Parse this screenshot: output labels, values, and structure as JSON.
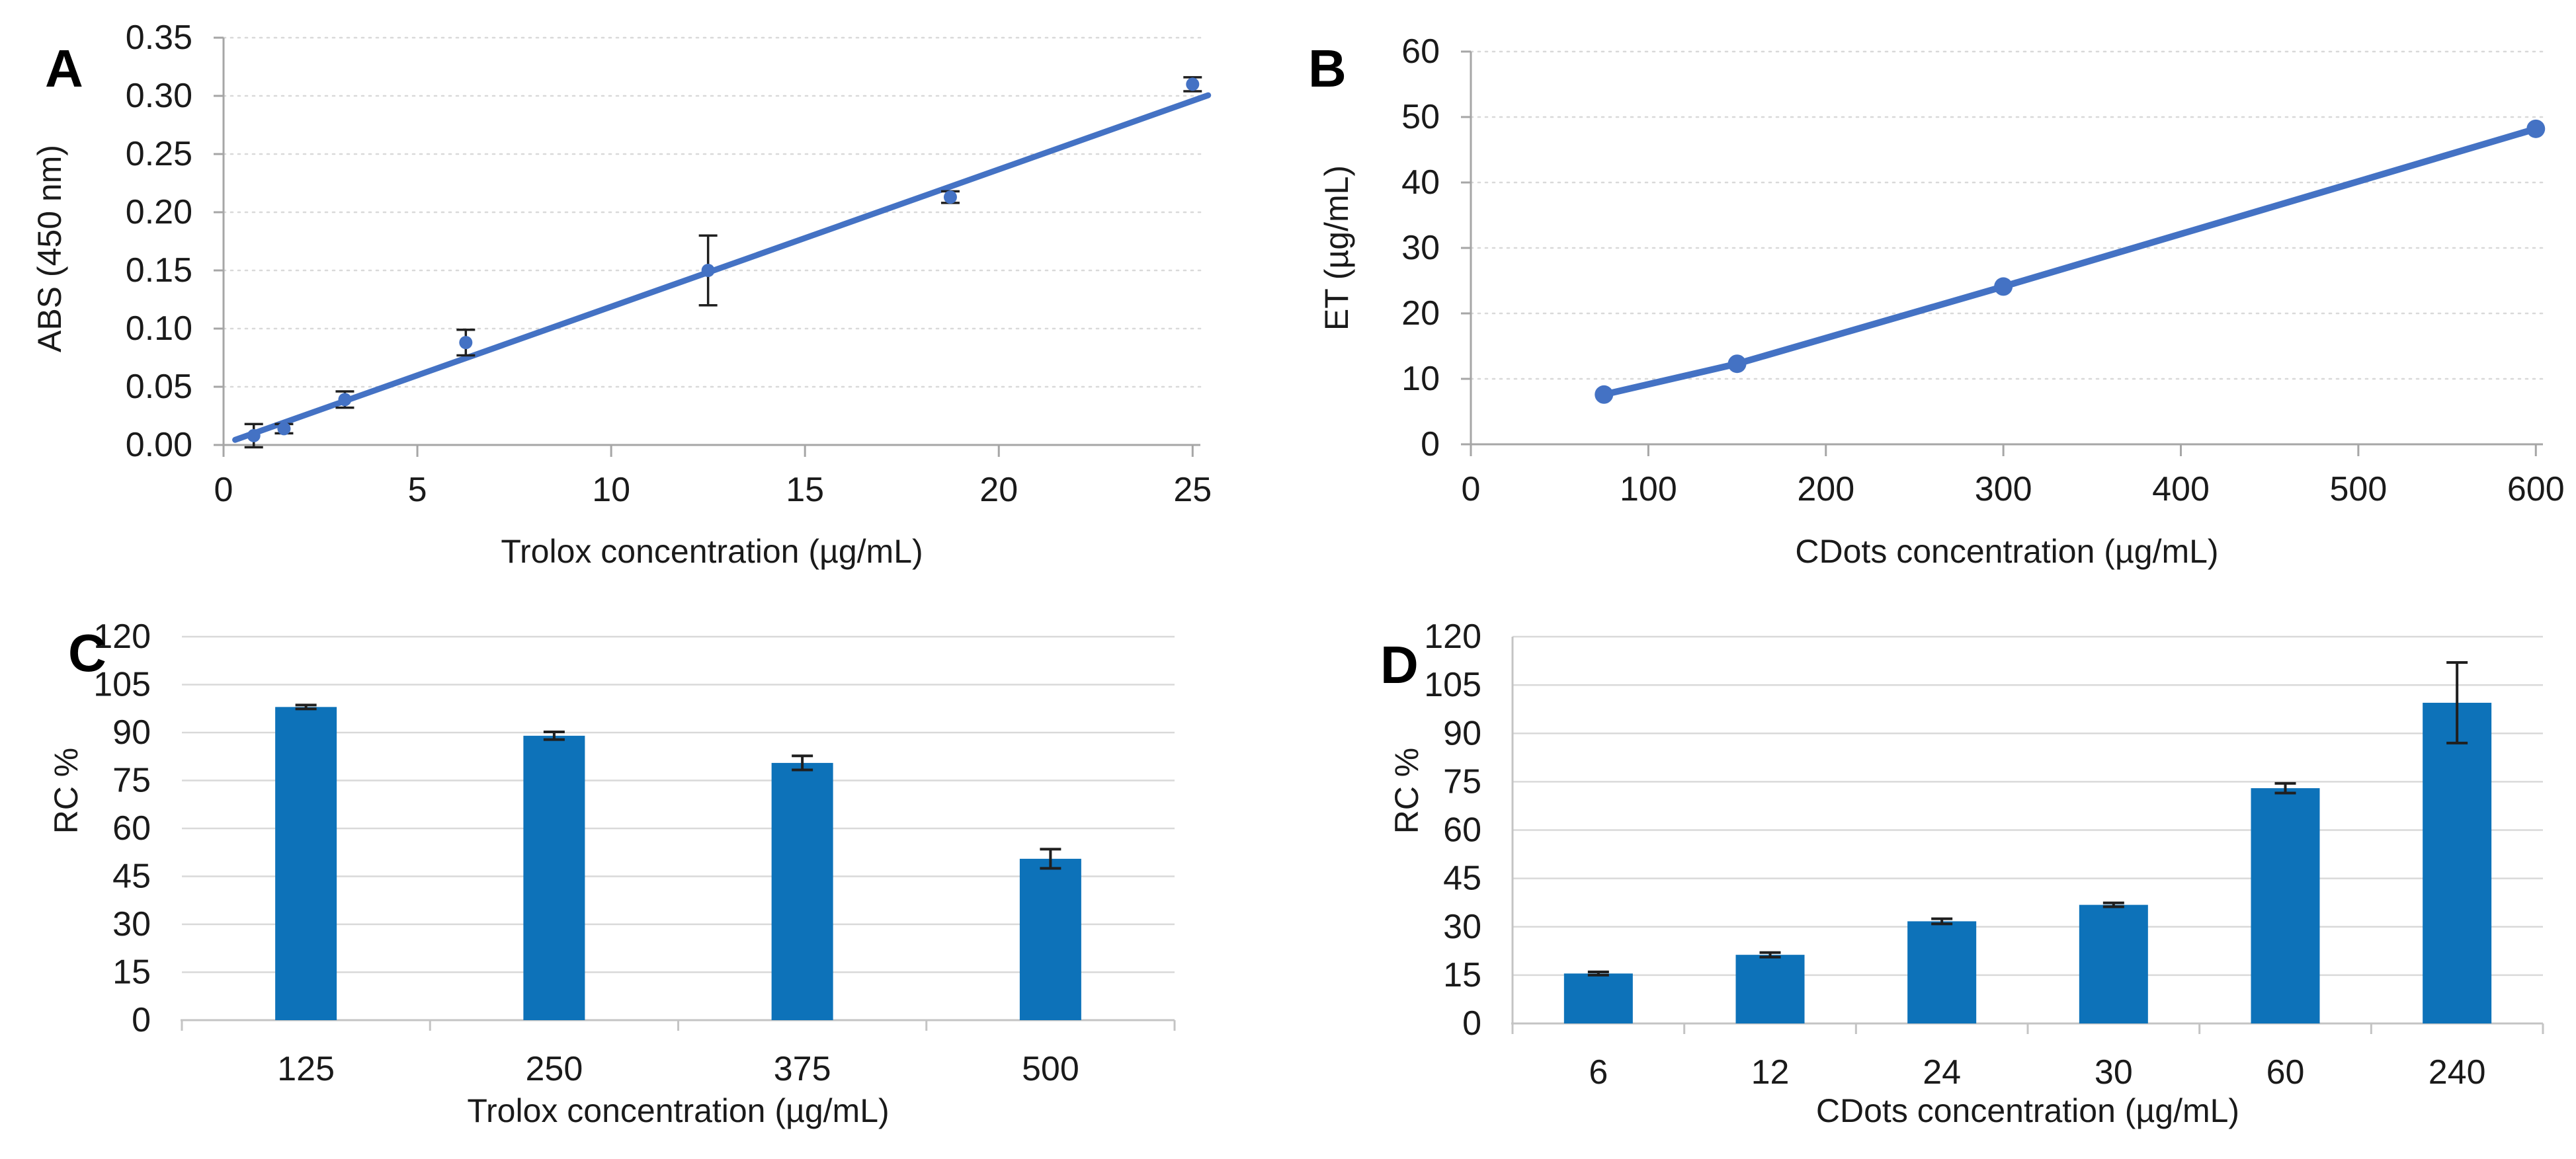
{
  "figure": {
    "panels": [
      "A",
      "B",
      "C",
      "D"
    ],
    "colors": {
      "series_line": "#4472c4",
      "bar_fill": "#0d72b9",
      "error_bar": "#1f1f1f",
      "gridline": "#d9d9d9",
      "axis_line": "#a6a6a6",
      "text": "#1a1a1a",
      "background": "#ffffff"
    }
  },
  "chart_data": [
    {
      "panel_label": "A",
      "type": "scatter",
      "xlabel": "Trolox concentration (µg/mL)",
      "ylabel": "ABS (450 nm)",
      "xlim": [
        0,
        25.2
      ],
      "xticks": [
        0,
        5,
        10,
        15,
        20,
        25
      ],
      "ylim": [
        0,
        0.35
      ],
      "ytick_step": 0.05,
      "ytick_decimals": 2,
      "grid": "dotted",
      "x": [
        0.78,
        1.56,
        3.13,
        6.25,
        12.5,
        18.75,
        25
      ],
      "y": [
        0.008,
        0.014,
        0.039,
        0.088,
        0.15,
        0.213,
        0.31
      ],
      "yerr": [
        0.01,
        0.004,
        0.007,
        0.011,
        0.03,
        0.005,
        0.006
      ],
      "trendline": {
        "x": [
          0.3,
          25.4
        ],
        "y": [
          0.0044,
          0.3005
        ]
      }
    },
    {
      "panel_label": "B",
      "type": "line",
      "xlabel": "CDots concentration (µg/mL)",
      "ylabel": "ET (µg/mL)",
      "xlim": [
        0,
        604
      ],
      "xticks": [
        0,
        100,
        200,
        300,
        400,
        500,
        600
      ],
      "ylim": [
        0,
        60
      ],
      "ytick_step": 10,
      "ytick_decimals": 0,
      "grid": "dotted",
      "x": [
        75,
        150,
        300,
        600
      ],
      "y": [
        7.6,
        12.3,
        24.1,
        48.2
      ]
    },
    {
      "panel_label": "C",
      "type": "bar",
      "xlabel": "Trolox concentration (µg/mL)",
      "ylabel": "RC %",
      "categories": [
        "125",
        "250",
        "375",
        "500"
      ],
      "values": [
        98,
        89,
        80.5,
        50.5
      ],
      "yerr": [
        0.6,
        1.2,
        2.2,
        3.0
      ],
      "ylim": [
        0,
        120
      ],
      "ytick_step": 15,
      "ytick_decimals": 0,
      "grid": "solid"
    },
    {
      "panel_label": "D",
      "type": "bar",
      "xlabel": "CDots concentration (µg/mL)",
      "ylabel": "RC %",
      "categories": [
        "6",
        "12",
        "24",
        "30",
        "60",
        "240"
      ],
      "values": [
        15.5,
        21.3,
        31.7,
        36.8,
        73,
        99.5
      ],
      "yerr": [
        0.5,
        0.7,
        0.8,
        0.6,
        1.5,
        12.5
      ],
      "ylim": [
        0,
        120
      ],
      "ytick_step": 15,
      "ytick_decimals": 0,
      "grid": "solid"
    }
  ]
}
